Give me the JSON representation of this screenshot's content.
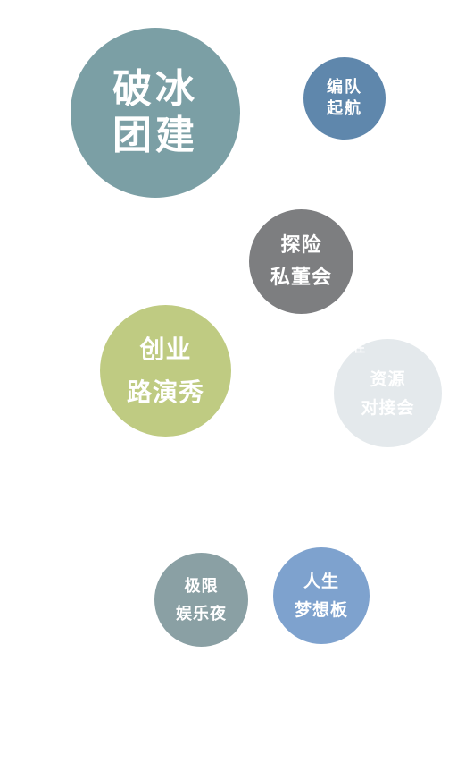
{
  "bubbles": [
    {
      "id": "ice-breaking",
      "lines": [
        "破冰",
        "团建"
      ],
      "color": "#7b9fa5"
    },
    {
      "id": "formation-sail",
      "lines": [
        "编队",
        "起航"
      ],
      "color": "#5f87ac"
    },
    {
      "id": "exploration-board",
      "lines": [
        "探险",
        "私董会"
      ],
      "color": "#7d7e80"
    },
    {
      "id": "startup-roadshow",
      "lines": [
        "创业",
        "路演秀"
      ],
      "color": "#bfcb82"
    },
    {
      "id": "resource-meeting",
      "lines": [
        "资源",
        "对接会"
      ],
      "color": "#e4e9ec"
    },
    {
      "id": "extreme-night",
      "lines": [
        "极限",
        "娱乐夜"
      ],
      "color": "#8aa0a4"
    },
    {
      "id": "dream-board",
      "lines": [
        "人生",
        "梦想板"
      ],
      "color": "#7ea2ce"
    }
  ],
  "ghost_label": "往"
}
